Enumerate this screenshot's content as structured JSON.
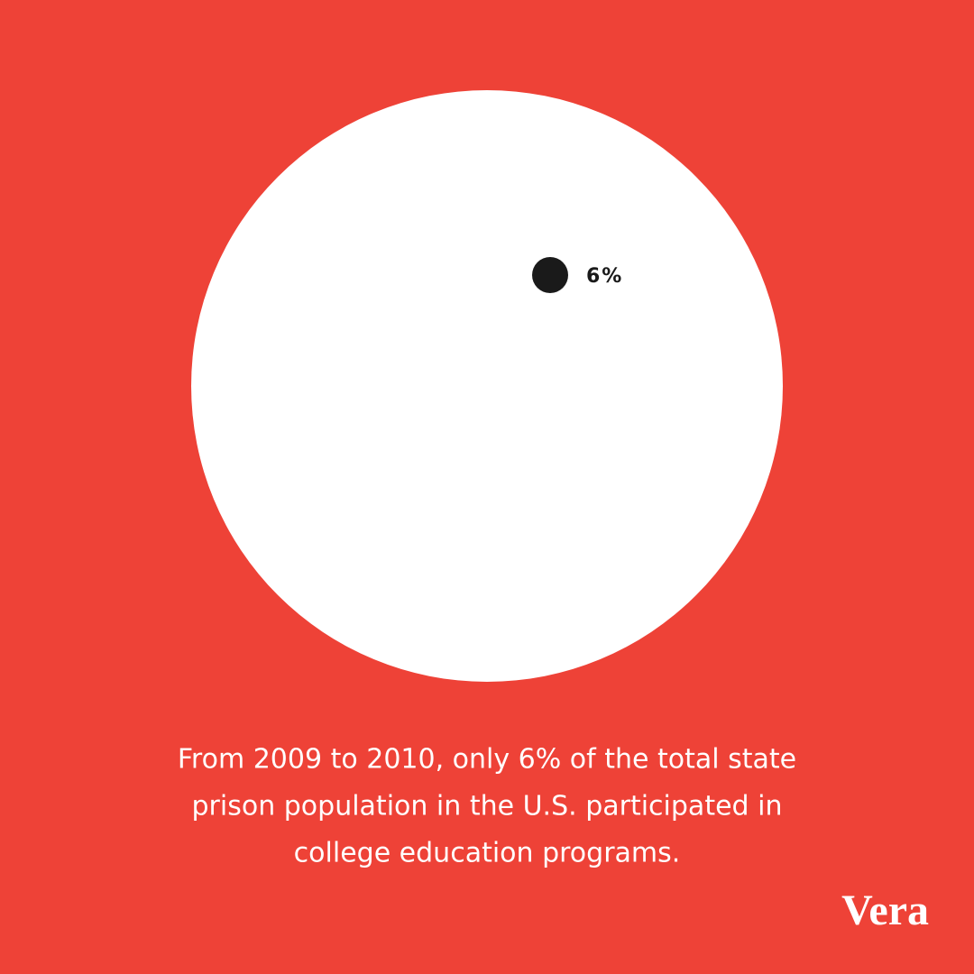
{
  "chart_data": {
    "type": "proportion",
    "values": [
      6
    ],
    "value_labels": [
      "6%"
    ],
    "color": "#1a1a1a",
    "total_color": "#ffffff",
    "caption": [
      "From 2009 to 2010, only 6% of the total state",
      "prison population in the U.S. participated in",
      "college education programs."
    ],
    "brand": "Vera"
  }
}
